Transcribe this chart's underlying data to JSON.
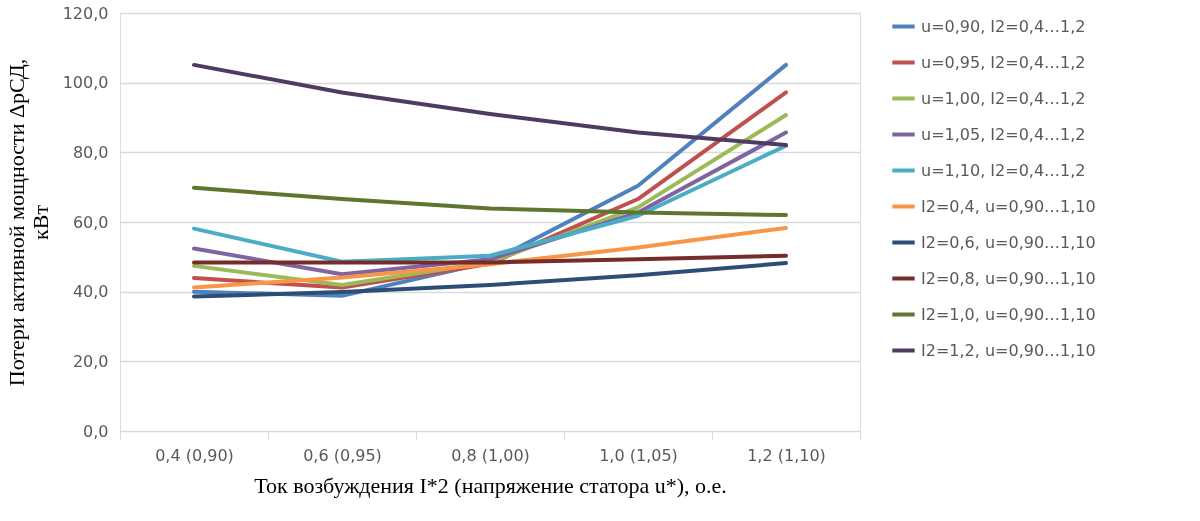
{
  "chart_data": {
    "type": "line",
    "xlabel": "Ток возбуждения I*2 (напряжение статора u*), о.е.",
    "ylabel": "Потери активной мощности ΔpСД, кВт",
    "categories": [
      "0,4 (0,90)",
      "0,6 (0,95)",
      "0,8 (1,00)",
      "1,0 (1,05)",
      "1,2 (1,10)"
    ],
    "ylim": [
      0,
      120
    ],
    "yticks": [
      {
        "value": 0,
        "label": "0,0"
      },
      {
        "value": 20,
        "label": "20,0"
      },
      {
        "value": 40,
        "label": "40,0"
      },
      {
        "value": 60,
        "label": "60,0"
      },
      {
        "value": 80,
        "label": "80,0"
      },
      {
        "value": 100,
        "label": "100,0"
      },
      {
        "value": 120,
        "label": "120,0"
      }
    ],
    "grid": "y",
    "legend": "right",
    "marker": "none",
    "line_style": "solid",
    "series": [
      {
        "name": "u=0,90, I2=0,4…1,2",
        "color": "#4f81bd",
        "values": [
          40.0,
          38.8,
          48.5,
          70.4,
          105.1
        ]
      },
      {
        "name": "u=0,95, I2=0,4…1,2",
        "color": "#c0504d",
        "values": [
          43.9,
          41.2,
          48.0,
          66.6,
          97.2
        ]
      },
      {
        "name": "u=1,00, I2=0,4…1,2",
        "color": "#9bbb59",
        "values": [
          47.4,
          41.9,
          48.5,
          64.2,
          90.7
        ]
      },
      {
        "name": "u=1,05, I2=0,4…1,2",
        "color": "#8064a2",
        "values": [
          52.4,
          45.0,
          49.3,
          62.7,
          85.7
        ]
      },
      {
        "name": "u=1,10, I2=0,4…1,2",
        "color": "#4bacc6",
        "values": [
          58.1,
          48.6,
          50.3,
          61.8,
          81.9
        ]
      },
      {
        "name": "I2=0,4, u=0,90…1,10",
        "color": "#f79646",
        "values": [
          41.2,
          44.1,
          47.9,
          52.7,
          58.3
        ]
      },
      {
        "name": "I2=0,6, u=0,90…1,10",
        "color": "#2c4d75",
        "values": [
          38.6,
          39.9,
          41.9,
          44.7,
          48.2
        ]
      },
      {
        "name": "I2=0,8, u=0,90…1,10",
        "color": "#772c2a",
        "values": [
          48.4,
          48.4,
          48.4,
          49.3,
          50.3
        ]
      },
      {
        "name": "I2=1,0, u=0,90…1,10",
        "color": "#5f7530",
        "values": [
          69.8,
          66.6,
          63.9,
          62.7,
          62.0
        ]
      },
      {
        "name": "I2=1,2, u=0,90…1,10",
        "color": "#4d3b62",
        "values": [
          105.1,
          97.2,
          91.0,
          85.7,
          82.1
        ]
      }
    ]
  }
}
